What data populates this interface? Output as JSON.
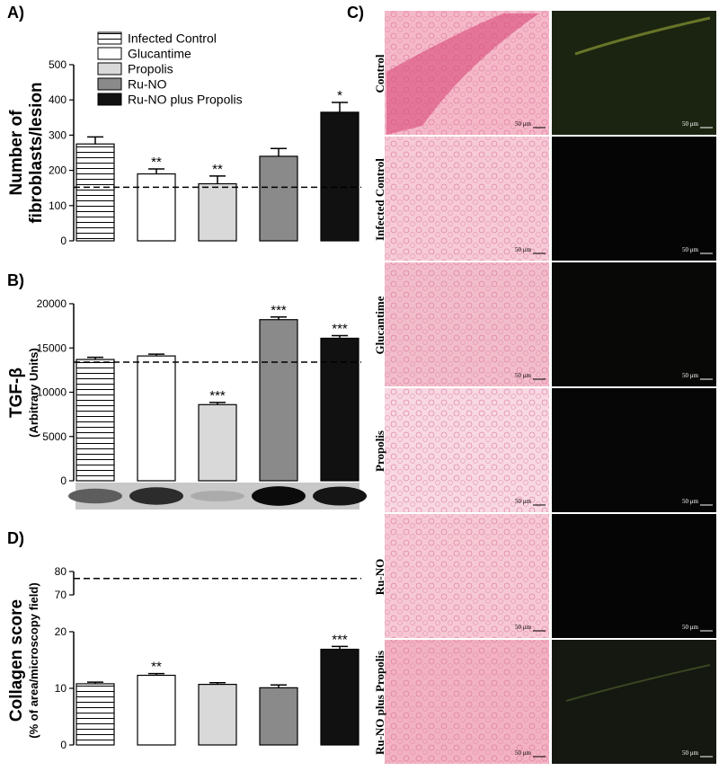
{
  "legend": [
    {
      "label": "Infected Control",
      "fill": "hatch"
    },
    {
      "label": "Glucantime",
      "fill": "#ffffff"
    },
    {
      "label": "Propolis",
      "fill": "#d9d9d9"
    },
    {
      "label": "Ru-NO",
      "fill": "#8a8a8a"
    },
    {
      "label": "Ru-NO plus Propolis",
      "fill": "#111111"
    }
  ],
  "panels": {
    "a": "A)",
    "b": "B)",
    "c": "C)",
    "d": "D)"
  },
  "chart_data": [
    {
      "type": "bar",
      "panel": "A)",
      "ylabel_lines": [
        "Number of",
        "fibroblasts/lesion"
      ],
      "categories": [
        "Infected Control",
        "Glucantime",
        "Propolis",
        "Ru-NO",
        "Ru-NO plus Propolis"
      ],
      "values": [
        275,
        190,
        162,
        240,
        365
      ],
      "errors": [
        20,
        14,
        22,
        22,
        28
      ],
      "significance": [
        "",
        "**",
        "**",
        "",
        "*"
      ],
      "reference_line": 152,
      "ylim": [
        0,
        500
      ],
      "ticks": [
        0,
        100,
        200,
        300,
        400,
        500
      ]
    },
    {
      "type": "bar",
      "panel": "B)",
      "ylabel": "TGF-β",
      "ylabel_sub": "(Arbitrary Units)",
      "categories": [
        "Infected Control",
        "Glucantime",
        "Propolis",
        "Ru-NO",
        "Ru-NO plus Propolis"
      ],
      "values": [
        13700,
        14100,
        8600,
        18200,
        16100
      ],
      "errors": [
        250,
        200,
        250,
        300,
        300
      ],
      "significance": [
        "",
        "",
        "***",
        "***",
        "***"
      ],
      "reference_line": 13400,
      "ylim": [
        0,
        20000
      ],
      "ticks": [
        0,
        5000,
        10000,
        15000,
        20000
      ],
      "blot_intensity": [
        0.55,
        0.8,
        0.15,
        0.97,
        0.92
      ]
    },
    {
      "type": "bar",
      "panel": "D)",
      "ylabel": "Collagen score",
      "ylabel_sub": "(% of area/microscopy field)",
      "categories": [
        "Infected Control",
        "Glucantime",
        "Propolis",
        "Ru-NO",
        "Ru-NO plus Propolis"
      ],
      "values": [
        10.8,
        12.3,
        10.7,
        10.1,
        16.9
      ],
      "errors": [
        0.3,
        0.3,
        0.3,
        0.5,
        0.5
      ],
      "significance": [
        "",
        "**",
        "",
        "",
        "***"
      ],
      "reference_line": 77,
      "broken_axis": {
        "lower": [
          0,
          20
        ],
        "upper": [
          70,
          80
        ]
      },
      "ticks_lower": [
        0,
        10,
        20
      ],
      "ticks_upper": [
        70,
        80
      ]
    }
  ],
  "micrographs": {
    "rows": [
      "Control",
      "Infected Control",
      "Glucantime",
      "Propolis",
      "Ru-NO",
      "Ru-NO plus Propolis"
    ],
    "scale_label": "50 μm",
    "left_tones": [
      "#f5b8c8",
      "#f6cad6",
      "#f2bdcb",
      "#f8d8e2",
      "#f6c8d4",
      "#f2b2c2"
    ],
    "right_tones": [
      "#1b2410",
      "#050505",
      "#080807",
      "#060606",
      "#050505",
      "#141811"
    ]
  },
  "colors": {
    "hatch": "#ffffff",
    "glucantime": "#ffffff",
    "propolis": "#d9d9d9",
    "runo": "#8a8a8a",
    "combo": "#111111"
  }
}
